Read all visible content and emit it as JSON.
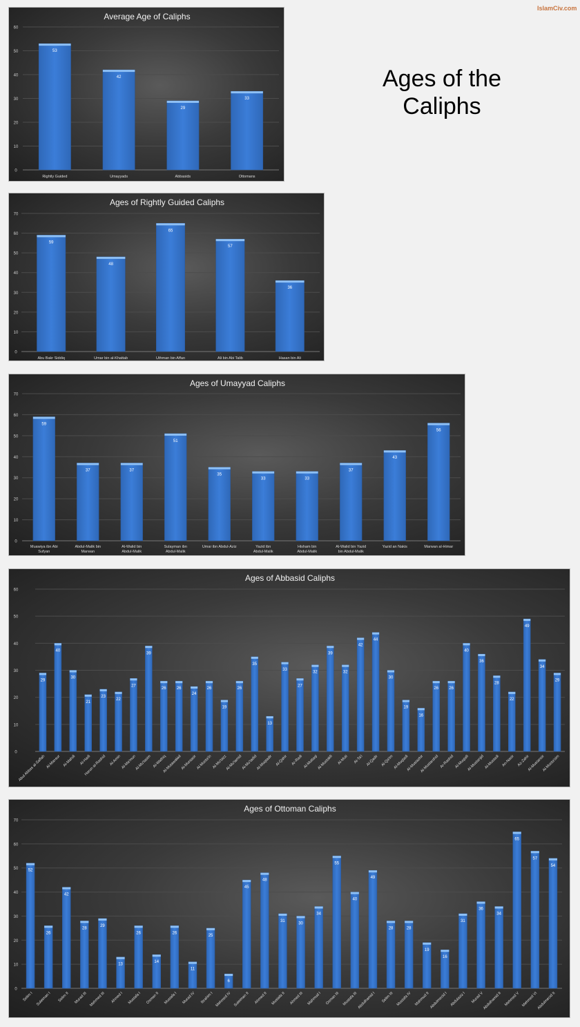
{
  "brand": "IslamCiv.com",
  "page_title": "Ages of the Caliphs",
  "colors": {
    "bar": "#3b7dd8",
    "bar_top": "#8ec0f5",
    "background": "#f1f1f1",
    "panel": "#3a3a3a",
    "brand": "#c8743e"
  },
  "chart_data": [
    {
      "type": "bar",
      "title": "Average Age of Caliphs",
      "ylim": [
        0,
        60
      ],
      "yticks": [
        0,
        10,
        20,
        30,
        40,
        50,
        60
      ],
      "grid": true,
      "categories": [
        "Rightly Guided",
        "Umayyads",
        "Abbasids",
        "Ottomans"
      ],
      "values": [
        53,
        42,
        29,
        33
      ]
    },
    {
      "type": "bar",
      "title": "Ages of Rightly Guided Caliphs",
      "ylim": [
        0,
        70
      ],
      "yticks": [
        0,
        10,
        20,
        30,
        40,
        50,
        60,
        70
      ],
      "grid": true,
      "categories": [
        "Abu Bakr Siddiq",
        "Umar bin al-Khattab",
        "Uthman bin Affan",
        "Ali bin Abi Talib",
        "Hasan bin Ali"
      ],
      "values": [
        59,
        48,
        65,
        57,
        36
      ]
    },
    {
      "type": "bar",
      "title": "Ages of Umayyad Caliphs",
      "ylim": [
        0,
        70
      ],
      "yticks": [
        0,
        10,
        20,
        30,
        40,
        50,
        60,
        70
      ],
      "grid": true,
      "categories": [
        "Muawiya ibn Abi Sufyan",
        "Abdul-Malik bin Marwan",
        "Al-Walid bin Abdul-Malik",
        "Sulayman ibn Abdul-Malik",
        "Umar ibn Abdul-Aziz",
        "Yazid ibn Abdul-Malik",
        "Hisham bin Abdul-Malik",
        "Al-Walid bin Yazid bin Abdul-Malik",
        "Yazid an Nakis",
        "Marwan al-Himar"
      ],
      "values": [
        59,
        37,
        37,
        51,
        35,
        33,
        33,
        37,
        43,
        56
      ]
    },
    {
      "type": "bar",
      "title": "Ages of Abbasid Caliphs",
      "ylim": [
        0,
        60
      ],
      "yticks": [
        0,
        10,
        20,
        30,
        40,
        50,
        60
      ],
      "grid": true,
      "categories": [
        "Abul Abbas al-Saffah",
        "Al-Mansur",
        "Al-Mahdi",
        "Al-Hadi",
        "Harun al-Rashid",
        "Al-Amin",
        "Al-Ma'mun",
        "Al-Mu'tasim",
        "Al-Wathiq",
        "Al-Mutawakkil",
        "Al-Muntasir",
        "Al-Musta'in",
        "Al-Mu'tazz",
        "Al-Mu'tamid",
        "Al-Mu'tadid",
        "Al-Muqtadir",
        "Al-Qahir",
        "Ar-Radi",
        "Al-Muttaqi",
        "Al-Mustakfi",
        "Al-Muti",
        "At-Ta'i",
        "Al-Qadir",
        "Al-Qa'im",
        "Al-Muqtadi",
        "Al-Mustazhir",
        "Al-Mustarshid",
        "Ar-Rashid",
        "Al-Muqtafi",
        "Al-Mustanjid",
        "Al-Mustadi",
        "An-Nasir",
        "Az-Zahir",
        "Al-Mustansir",
        "Al-Musta'sim"
      ],
      "values": [
        29,
        40,
        30,
        21,
        23,
        22,
        27,
        39,
        26,
        26,
        24,
        26,
        19,
        26,
        35,
        13,
        33,
        27,
        32,
        39,
        32,
        42,
        44,
        30,
        19,
        16,
        26,
        26,
        40,
        36,
        28,
        22,
        49,
        34,
        29
      ]
    },
    {
      "type": "bar",
      "title": "Ages of Ottoman Caliphs",
      "ylim": [
        0,
        70
      ],
      "yticks": [
        0,
        10,
        20,
        30,
        40,
        50,
        60,
        70
      ],
      "grid": true,
      "categories": [
        "Selim I",
        "Suleiman I",
        "Selim II",
        "Murad III",
        "Mehmed III",
        "Ahmed I",
        "Mustafa I",
        "Osman II",
        "Mustafa I",
        "Murad IV",
        "Ibrahim I",
        "Mehmed IV",
        "Suleiman II",
        "Ahmed II",
        "Mustafa II",
        "Ahmed III",
        "Mahmud I",
        "Osman III",
        "Mustafa III",
        "Abdulhamid I",
        "Selim III",
        "Mustafa IV",
        "Mahmud II",
        "Abdulmecid I",
        "Abdulaziz I",
        "Murad V",
        "Abdulhamid II",
        "Mehmed V",
        "Mehmed VI",
        "Abdulmecid II"
      ],
      "values": [
        52,
        26,
        42,
        28,
        29,
        13,
        26,
        14,
        26,
        11,
        25,
        6,
        45,
        48,
        31,
        30,
        34,
        55,
        40,
        49,
        28,
        28,
        19,
        16,
        31,
        36,
        34,
        65,
        57,
        54
      ]
    }
  ]
}
